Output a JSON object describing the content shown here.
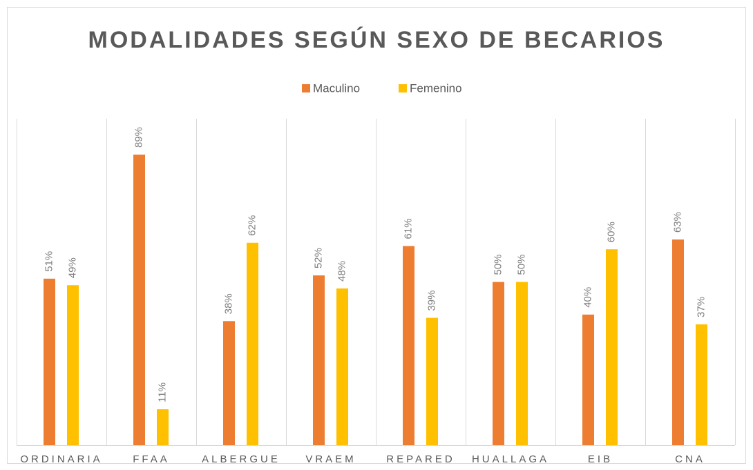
{
  "chart_data": {
    "type": "bar",
    "title": "MODALIDADES SEGÚN SEXO DE BECARIOS",
    "categories": [
      "ORDINARIA",
      "FFAA",
      "ALBERGUE",
      "VRAEM",
      "REPARED",
      "HUALLAGA",
      "EIB",
      "CNA"
    ],
    "series": [
      {
        "name": "Maculino",
        "color": "#ed7d31",
        "values": [
          51,
          89,
          38,
          52,
          61,
          50,
          40,
          63
        ],
        "value_labels": [
          "51%",
          "89%",
          "38%",
          "52%",
          "61%",
          "50%",
          "40%",
          "63%"
        ]
      },
      {
        "name": "Femenino",
        "color": "#ffc000",
        "values": [
          49,
          11,
          62,
          48,
          39,
          50,
          60,
          37
        ],
        "value_labels": [
          "49%",
          "11%",
          "62%",
          "48%",
          "39%",
          "50%",
          "60%",
          "37%"
        ]
      }
    ],
    "ylim": [
      0,
      100
    ],
    "legend": "top"
  }
}
